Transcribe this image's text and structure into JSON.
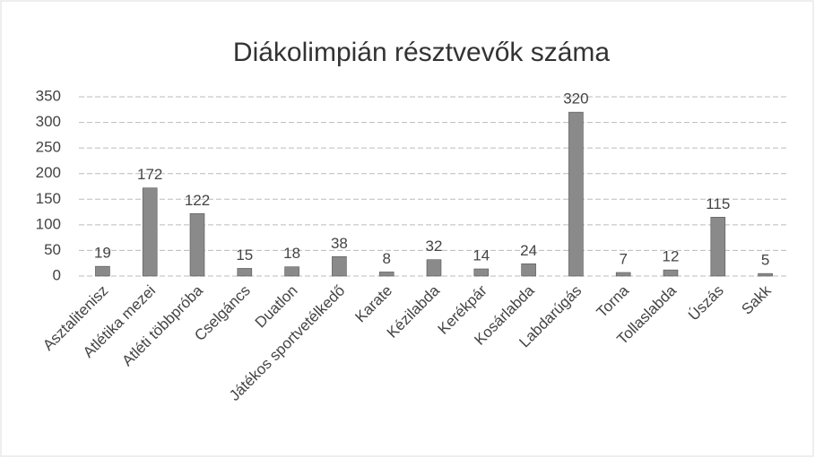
{
  "chart_data": {
    "type": "bar",
    "title": "Diákolimpián résztvevők száma",
    "categories": [
      "Asztalitenisz",
      "Atlétika mezei",
      "Atléti többpróba",
      "Cselgáncs",
      "Duatlon",
      "Játékos sportvetélkedő",
      "Karate",
      "Kézilabda",
      "Kerékpár",
      "Kosárlabda",
      "Labdarúgás",
      "Torna",
      "Tollaslabda",
      "Úszás",
      "Sakk"
    ],
    "values": [
      19,
      172,
      122,
      15,
      18,
      38,
      8,
      32,
      14,
      24,
      320,
      7,
      12,
      115,
      5
    ],
    "color": "#8a8a8a",
    "ylim": [
      0,
      350
    ],
    "yticks": [
      0,
      50,
      100,
      150,
      200,
      250,
      300,
      350
    ],
    "grid": true
  }
}
